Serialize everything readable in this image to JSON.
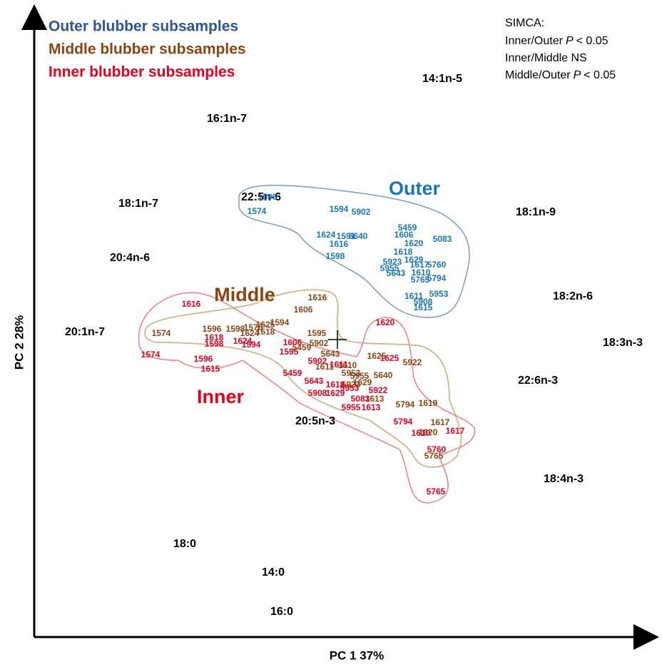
{
  "legend": [
    "Outer blubber subsamples",
    "Middle blubber subsamples",
    "Inner blubber subsamples"
  ],
  "simca": {
    "title": "SIMCA:",
    "lines": [
      {
        "pre": "Inner/Outer",
        "p": "P",
        "post": "< 0.05"
      },
      {
        "pre": "Inner/Middle NS"
      },
      {
        "pre": "Middle/Outer",
        "p": "P",
        "post": "< 0.05"
      }
    ]
  },
  "axes": {
    "x": "PC 1   37%",
    "y": "PC 2   28%"
  },
  "groups": {
    "outer": "Outer",
    "middle": "Middle",
    "inner": "Inner"
  },
  "variables": [
    "14:1n-5",
    "16:1n-7",
    "22:5n-6",
    "18:1n-7",
    "18:1n-9",
    "20:4n-6",
    "18:2n-6",
    "20:1n-7",
    "18:3n-3",
    "22:6n-3",
    "20:5n-3",
    "18:4n-3",
    "18:0",
    "14:0",
    "16:0"
  ],
  "samples": {
    "outer": [
      "1596",
      "1574",
      "1594",
      "5902",
      "1624",
      "1591",
      "5640",
      "1616",
      "1598",
      "5459",
      "1606",
      "1620",
      "5083",
      "1618",
      "5923",
      "5955",
      "1629",
      "1617",
      "5760",
      "5643",
      "1610",
      "5765",
      "5794",
      "1611",
      "5953",
      "5908",
      "1615"
    ],
    "middle": [
      "1616",
      "1606",
      "1594",
      "1625",
      "1576",
      "1574",
      "1596",
      "1598",
      "1624",
      "1618",
      "1595",
      "5459",
      "5902",
      "5643",
      "1625",
      "5922",
      "1610",
      "5640",
      "1611",
      "5953",
      "5955",
      "5923",
      "1629",
      "1613",
      "5794",
      "1619",
      "1617",
      "1620",
      "5765"
    ],
    "inner": [
      "1616",
      "1574",
      "1596",
      "1615",
      "1618",
      "1598",
      "1624",
      "1594",
      "1606",
      "1595",
      "1620",
      "1625",
      "5902",
      "1611",
      "5459",
      "5643",
      "1618",
      "5953",
      "5908",
      "1629",
      "5922",
      "5083",
      "5955",
      "1613",
      "5794",
      "1610",
      "1617",
      "5760",
      "5765"
    ]
  }
}
